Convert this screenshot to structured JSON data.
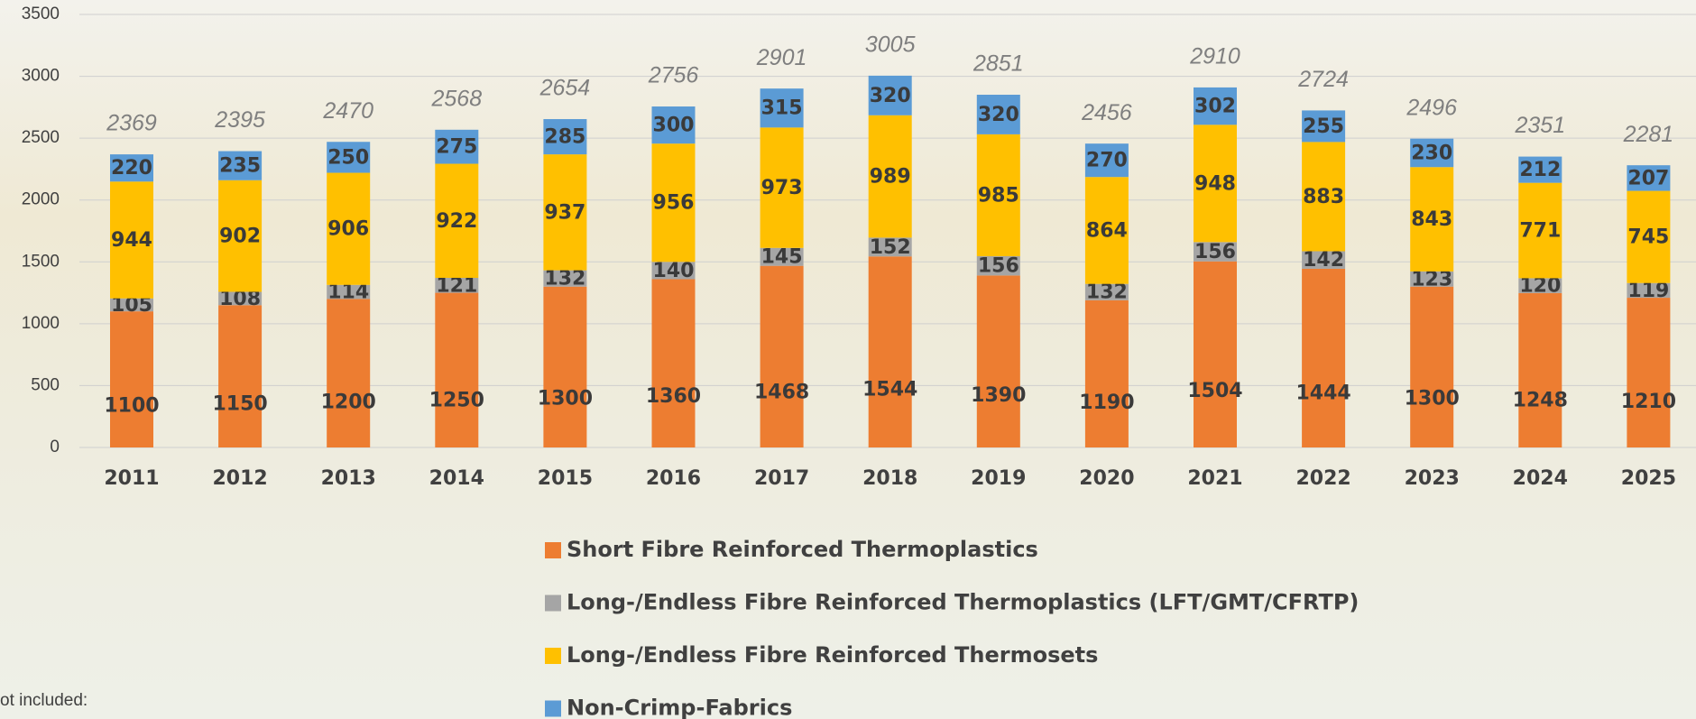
{
  "chart_data": {
    "type": "stacked-bar",
    "categories": [
      "2011",
      "2012",
      "2013",
      "2014",
      "2015",
      "2016",
      "2017",
      "2018",
      "2019",
      "2020",
      "2021",
      "2022",
      "2023",
      "2024",
      "2025"
    ],
    "series": [
      {
        "name": "Short Fibre Reinforced Thermoplastics",
        "color": "#ed7d31",
        "values": [
          1100,
          1150,
          1200,
          1250,
          1300,
          1360,
          1468,
          1544,
          1390,
          1190,
          1504,
          1444,
          1300,
          1248,
          1210
        ]
      },
      {
        "name": "Long-/Endless Fibre Reinforced Thermoplastics (LFT/GMT/CFRTP)",
        "color": "#a5a5a5",
        "values": [
          105,
          108,
          114,
          121,
          132,
          140,
          145,
          152,
          156,
          132,
          156,
          142,
          123,
          120,
          119
        ]
      },
      {
        "name": "Long-/Endless Fibre Reinforced Thermosets",
        "color": "#ffc000",
        "values": [
          944,
          902,
          906,
          922,
          937,
          956,
          973,
          989,
          985,
          864,
          948,
          883,
          843,
          771,
          745
        ]
      },
      {
        "name": "Non-Crimp-Fabrics",
        "color": "#5b9bd5",
        "values": [
          220,
          235,
          250,
          275,
          285,
          300,
          315,
          320,
          320,
          270,
          302,
          255,
          230,
          212,
          207
        ]
      }
    ],
    "totals": [
      2369,
      2395,
      2470,
      2568,
      2654,
      2756,
      2901,
      3005,
      2851,
      2456,
      2910,
      2724,
      2496,
      2351,
      2281
    ],
    "ylim": [
      0,
      3500
    ],
    "yticks": [
      0,
      500,
      1000,
      1500,
      2000,
      2500,
      3000,
      3500
    ],
    "grid": true,
    "note": "ot included:"
  }
}
